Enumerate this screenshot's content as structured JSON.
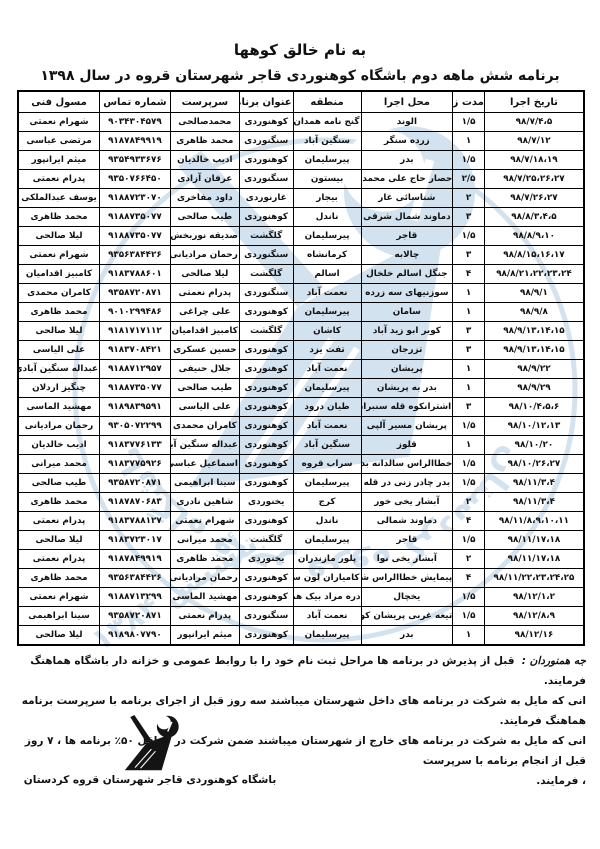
{
  "page": {
    "bismillah": "به نام خالق کوهها",
    "title": "برنامه شش ماهه دوم باشگاه کوهنوردی قاجر  شهرستان قروه در سال ۱۳۹۸"
  },
  "table": {
    "headers": [
      "تاریخ اجرا",
      "مدت زمان",
      "محل اجرا",
      "منطقه",
      "عنوان برنامه",
      "سرپرست",
      "شماره تماس",
      "مسول فنی"
    ],
    "rows": [
      [
        "۹۸/۷/۴،۵",
        "۱/۵",
        "الوند",
        "گنج نامه همدان",
        "کوهنوردی",
        "محمدصالحی",
        "۹۰۳۴۳۰۴۵۷۹",
        "شهرام نعمتی"
      ],
      [
        "۹۸/۷/۱۲",
        "۱",
        "زرده سنگر",
        "سنگین آباد",
        "سنگنوردی",
        "محمد ظاهری",
        "۹۱۸۷۸۴۹۹۱۹",
        "مرتضی عباسی"
      ],
      [
        "۹۸/۷/۱۸،۱۹",
        "۱/۵",
        "بدر",
        "پیرسلیمان",
        "کوهنوردی",
        "ادیب خالدیان",
        "۹۳۵۴۹۳۳۶۷۶",
        "میثم ایرانپور"
      ],
      [
        "۹۸/۷/۲۵،۲۶،۲۷",
        "۲/۵",
        "حصار حاج علی محمد",
        "بیستون",
        "سنگنوردی",
        "عرفان آزادی",
        "۹۳۵۰۷۶۶۴۵۰",
        "پدرام نعمتی"
      ],
      [
        "۹۸/۷/۲۶،۲۷",
        "۲",
        "شناسائی غار",
        "بیجار",
        "غارنوردی",
        "داود مفاخری",
        "۹۱۸۸۷۲۳۰۷۰",
        "یوسف عبدالملکی"
      ],
      [
        "۹۸/۸/۳،۴،۵",
        "۳",
        "دماوند شمال شرقی",
        "ناندل",
        "کوهنوردی",
        "طیب صالحی",
        "۹۱۸۸۷۳۵۰۷۷",
        "محمد ظاهری"
      ],
      [
        "۹۸/۸/۹،۱۰",
        "۱/۵",
        "قاجر",
        "پیرسلیمان",
        "گلگشت",
        "صدیقه نوربخش",
        "۹۱۸۸۷۳۵۰۷۷",
        "لیلا صالحی"
      ],
      [
        "۹۸/۸/۱۵،۱۶،۱۷",
        "۳",
        "چالابه",
        "کرمانشاه",
        "سنگنوردی",
        "رحمان مرادیانی",
        "۹۳۵۶۳۸۴۴۲۶",
        "شهرام نعمتی"
      ],
      [
        "۹۸/۸/۲۱،۲۲،۲۳،۲۴",
        "۴",
        "جنگل اسالم خلخال",
        "اسالم",
        "گلگشت",
        "لیلا صالحی",
        "۹۱۸۳۷۸۸۶۰۱",
        "کامبیز اقدامیان"
      ],
      [
        "۹۸/۹/۱",
        "۱",
        "سوزنیهای سه زرده",
        "نعمت آباد",
        "سنگنوردی",
        "پدرام نعمتی",
        "۹۳۵۸۷۲۰۸۷۱",
        "کامران محمدی"
      ],
      [
        "۹۸/۹/۸",
        "۱",
        "سامان",
        "پیرسلیمان",
        "کوهنوردی",
        "علی چراغی",
        "۹۰۱۰۲۹۹۴۸۶",
        "محمد ظاهری"
      ],
      [
        "۹۸/۹/۱۳،۱۴،۱۵",
        "۳",
        "کویر ابو زید آباد",
        "کاشان",
        "گلگشت",
        "کامبیز اقدامیان",
        "۹۱۸۱۷۱۷۱۱۲",
        "لیلا صالحی"
      ],
      [
        "۹۸/۹/۱۳،۱۴،۱۵",
        "۳",
        "تزرجان",
        "تفت یزد",
        "کوهنوردی",
        "حسین عسکری",
        "۹۱۸۳۷۰۸۴۲۱",
        "علی الیاسی"
      ],
      [
        "۹۸/۹/۲۲",
        "۱",
        "پریشان",
        "نعمت آباد",
        "کوهنوردی",
        "جلال حنیفی",
        "۹۱۸۸۷۱۲۹۵۷",
        "عبداله سنگین آبادی"
      ],
      [
        "۹۸/۹/۲۹",
        "۱",
        "بدر به پریشان",
        "پیرسلیمان",
        "کوهنوردی",
        "طیب صالحی",
        "۹۱۸۸۷۳۵۰۷۷",
        "چنگیز اردلان"
      ],
      [
        "۹۸/۱۰/۴،۵،۶",
        "۳",
        "اشترانکوه قله سنبران",
        "طیان درود",
        "کوهنوردی",
        "علی الیاسی",
        "۹۱۸۹۸۳۹۵۹۱",
        "مهشید الماسی"
      ],
      [
        "۹۸/۱۰/۱۲،۱۳",
        "۱/۵",
        "پریشان مسیر آلپی",
        "نعمت آباد",
        "کوهنوردی",
        "کامران محمدی",
        "۹۳۰۵۰۷۲۲۹۹",
        "رحمان مرادیانی"
      ],
      [
        "۹۸/۱۰/۲۰",
        "۱",
        "قلوز",
        "سنگین آباد",
        "کوهنوردی",
        "عبداله سنگین آبادی",
        "۹۱۸۳۷۷۶۱۳۳",
        "ادیب خالدیان"
      ],
      [
        "۹۸/۱۰/۲۶،۲۷",
        "۱/۵",
        "خطاالراس سالدانه بدر",
        "سراب قروه",
        "کوهنوردی",
        "اسماعیل عباسی",
        "۹۱۸۳۷۷۵۹۲۶",
        "محمد میرانی"
      ],
      [
        "۹۸/۱۱/۳،۴",
        "۱/۵",
        "بدر چادر زنی در قله",
        "پیرسلیمان",
        "کوهنوردی",
        "سینا ابراهیمی",
        "۹۳۵۸۷۲۰۸۷۱",
        "طیب صالحی"
      ],
      [
        "۹۸/۱۱/۳،۴",
        "۲",
        "آبشار یخی خور",
        "کرج",
        "یخنوردی",
        "شاهین نادری",
        "۹۱۸۷۸۷۰۶۸۳",
        "محمد ظاهری"
      ],
      [
        "۹۸/۱۱/۸،۹،۱۰،۱۱",
        "۴",
        "دماوند شمالی",
        "ناندل",
        "کوهنوردی",
        "شهرام نعمتی",
        "۹۱۸۳۷۸۸۱۲۷",
        "پدرام نعمتی"
      ],
      [
        "۹۸/۱۱/۱۷،۱۸",
        "۱/۵",
        "قاجر",
        "پیرسلیمان",
        "گلگشت",
        "محمد میرانی",
        "۹۱۸۳۷۲۳۰۱۷",
        "لیلا صالحی"
      ],
      [
        "۹۸/۱۱/۱۷،۱۸",
        "۲",
        "آبشار یخی نوا",
        "پلور مازندران",
        "یخنوردی",
        "محمد ظاهری",
        "۹۱۸۷۸۴۹۹۱۹",
        "پدرام نعمتی"
      ],
      [
        "۹۸/۱۱/۲۲،۲۳،۲۴،۲۵",
        "۴",
        "پیمایش خطاالراس شاهو",
        "کامیاران لون سادات",
        "کوهنوردی",
        "رحمان مرادیانی",
        "۹۳۵۶۳۸۴۴۲۶",
        "محمد ظاهری"
      ],
      [
        "۹۸/۱۲/۱،۲",
        "۱/۵",
        "یخچال",
        "دره مراد بیک همدان",
        "کوهنوردی",
        "مهشید الماسی",
        "۹۱۸۸۷۱۳۲۹۹",
        "شهرام نعمتی"
      ],
      [
        "۹۸/۱۲/۸،۹",
        "۱/۵",
        "تیغه غربی پریشان کوچک",
        "نعمت آباد",
        "سنگنوردی",
        "پدرام نعمتی",
        "۹۳۵۸۷۲۰۸۷۱",
        "سینا ابراهیمی"
      ],
      [
        "۹۸/۱۲/۱۶",
        "۱",
        "بدر",
        "پیرسلیمان",
        "کوهنوردی",
        "میثم ایرانپور",
        "۹۱۸۹۸۰۷۷۹۰",
        "لیلا صالحی"
      ]
    ]
  },
  "notes": {
    "lead": "جه همنوردان :",
    "lines": [
      "قبل از پذیرش در برنامه ها مراحل ثبت نام خود را با روابط عمومی و خزانه دار باشگاه هماهنگ فرمایند.",
      "انی که مایل به شرکت در برنامه های داخل شهرستان میباشند سه روز قبل از اجرای برنامه با سرپرست برنامه هماهنگ فرمایند.",
      "انی که مایل به شرکت در برنامه های خارج از شهرستان میباشند ضمن شرکت در حداقل ۵۰٪ برنامه ها ، ۷ روز قبل از انجام برنامه با سرپرست",
      "، فرمایند."
    ]
  },
  "footer": {
    "club_name": "باشگاه کوهنوردی قاجر شهرستان قروه کردستان"
  },
  "watermark": {
    "ring_text": "باشگاه قاجر قروه کردستان",
    "established_text": "تأسیس ۱۳۸۴",
    "color": "#a9c6e0"
  }
}
